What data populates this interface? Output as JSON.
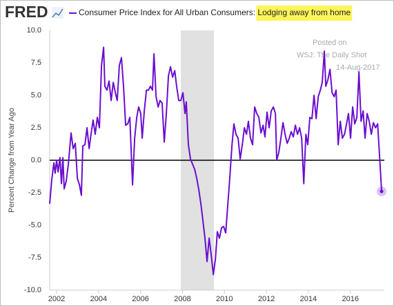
{
  "logo": "FRED",
  "chart_data": {
    "type": "line",
    "series": [
      {
        "name": "Consumer Price Index for All Urban Consumers: Lodging away from home",
        "color": "#6a0dcf",
        "values": [
          -3.35,
          -1.5,
          -0.2,
          -1.0,
          0,
          -0.9,
          0.2,
          -1.8,
          0.2,
          -2.2,
          -1.6,
          -0.3,
          2.1,
          0.9,
          1.3,
          -1.4,
          -1.9,
          -2.7,
          1.1,
          1.2,
          2.5,
          0.9,
          2.0,
          3.1,
          2.0,
          3.3,
          2.5,
          7.3,
          8.7,
          5.7,
          5.4,
          6.1,
          4.6,
          6.0,
          5.2,
          4.6,
          7.3,
          7.9,
          5.7,
          2.7,
          2.8,
          3.3,
          -1.9,
          1.7,
          3.3,
          4.1,
          3.6,
          1.7,
          3.8,
          5.4,
          5.4,
          5.7,
          5.4,
          8.2,
          4.9,
          4.1,
          4.6,
          4.4,
          1.4,
          3.6,
          6.5,
          7.2,
          6.4,
          6.9,
          5.7,
          4.6,
          4.6,
          5.2,
          3.6,
          4.5,
          1.2,
          0.1,
          -0.3,
          -0.7,
          -1.4,
          -2.3,
          -3.4,
          -4.6,
          -6.0,
          -7.8,
          -6.0,
          -7.3,
          -8.8,
          -7.6,
          -5.5,
          -6.0,
          -5.2,
          -5.1,
          -5.6,
          -3.4,
          -1.2,
          1.2,
          2.8,
          2.0,
          1.7,
          0.1,
          1.2,
          2.5,
          2.0,
          3.0,
          1.7,
          1.2,
          4.1,
          3.6,
          3.3,
          2.1,
          2.7,
          1.8,
          3.7,
          2.5,
          3.8,
          4.1,
          3.6,
          0,
          0.6,
          1.7,
          2.9,
          2.0,
          1.3,
          1.7,
          2.2,
          1.8,
          2.7,
          2.0,
          2.5,
          1.7,
          -1.8,
          2.0,
          1.2,
          3.3,
          3.2,
          5.0,
          3.2,
          4.9,
          5.4,
          6.0,
          8.4,
          5.7,
          6.2,
          7.0,
          5.2,
          4.9,
          5.4,
          1.2,
          3.0,
          1.7,
          2.0,
          2.8,
          3.6,
          1.7,
          4.1,
          2.8,
          3.3,
          6.8,
          3.0,
          3.8,
          1.7,
          3.6,
          3.0,
          2.0,
          2.9,
          2.5,
          2.8,
          0.4,
          -2.4
        ]
      }
    ],
    "x": [
      2001.67,
      2001.77,
      2001.87,
      2001.93,
      2002.0,
      2002.07,
      2002.16,
      2002.23,
      2002.3,
      2002.36,
      2002.46,
      2002.56,
      2002.69,
      2002.79,
      2002.89,
      2002.99,
      2003.09,
      2003.18,
      2003.25,
      2003.35,
      2003.45,
      2003.55,
      2003.64,
      2003.74,
      2003.84,
      2003.94,
      2004.04,
      2004.14,
      2004.24,
      2004.3,
      2004.4,
      2004.5,
      2004.6,
      2004.7,
      2004.8,
      2004.89,
      2004.99,
      2005.09,
      2005.19,
      2005.29,
      2005.39,
      2005.49,
      2005.62,
      2005.72,
      2005.82,
      2005.91,
      2006.01,
      2006.08,
      2006.18,
      2006.28,
      2006.38,
      2006.47,
      2006.57,
      2006.64,
      2006.74,
      2006.84,
      2006.93,
      2007.03,
      2007.13,
      2007.23,
      2007.33,
      2007.43,
      2007.53,
      2007.63,
      2007.72,
      2007.82,
      2007.92,
      2008.02,
      2008.12,
      2008.18,
      2008.28,
      2008.38,
      2008.48,
      2008.58,
      2008.68,
      2008.78,
      2008.88,
      2008.97,
      2009.07,
      2009.17,
      2009.27,
      2009.37,
      2009.47,
      2009.57,
      2009.66,
      2009.76,
      2009.86,
      2009.96,
      2010.06,
      2010.16,
      2010.26,
      2010.36,
      2010.45,
      2010.55,
      2010.65,
      2010.75,
      2010.85,
      2010.95,
      2011.05,
      2011.14,
      2011.24,
      2011.34,
      2011.44,
      2011.54,
      2011.64,
      2011.74,
      2011.84,
      2011.93,
      2012.03,
      2012.13,
      2012.23,
      2012.33,
      2012.43,
      2012.49,
      2012.59,
      2012.69,
      2012.79,
      2012.89,
      2012.99,
      2013.09,
      2013.18,
      2013.28,
      2013.38,
      2013.48,
      2013.58,
      2013.68,
      2013.78,
      2013.88,
      2013.97,
      2014.07,
      2014.17,
      2014.27,
      2014.37,
      2014.47,
      2014.57,
      2014.66,
      2014.76,
      2014.83,
      2014.93,
      2015.03,
      2015.13,
      2015.23,
      2015.32,
      2015.42,
      2015.52,
      2015.62,
      2015.72,
      2015.82,
      2015.91,
      2016.01,
      2016.11,
      2016.21,
      2016.31,
      2016.41,
      2016.51,
      2016.61,
      2016.7,
      2016.8,
      2016.9,
      2017.0,
      2017.1,
      2017.2,
      2017.3,
      2017.39,
      2017.49
    ],
    "y_label": "Percent Change from Year Ago",
    "xlim": [
      2001.67,
      2017.62
    ],
    "xticks": [
      2002,
      2004,
      2006,
      2008,
      2010,
      2012,
      2014,
      2016
    ],
    "ylim": [
      -10,
      10
    ],
    "yticks": [
      {
        "value": -10,
        "label": "-10.0"
      },
      {
        "value": -7.5,
        "label": "-7.5"
      },
      {
        "value": -5,
        "label": "-5.0"
      },
      {
        "value": -2.5,
        "label": "-2.5"
      },
      {
        "value": 0,
        "label": "0.0"
      },
      {
        "value": 2.5,
        "label": "2.5"
      },
      {
        "value": 5,
        "label": "5.0"
      },
      {
        "value": 7.5,
        "label": "7.5"
      },
      {
        "value": 10,
        "label": "10.0"
      }
    ],
    "recessions": [
      [
        2007.92,
        2009.5
      ]
    ],
    "zero_line": true,
    "grid": false,
    "annotations": [
      "Posted on",
      "WSJ: The Daily Shot",
      "14-Aug-2017"
    ]
  }
}
